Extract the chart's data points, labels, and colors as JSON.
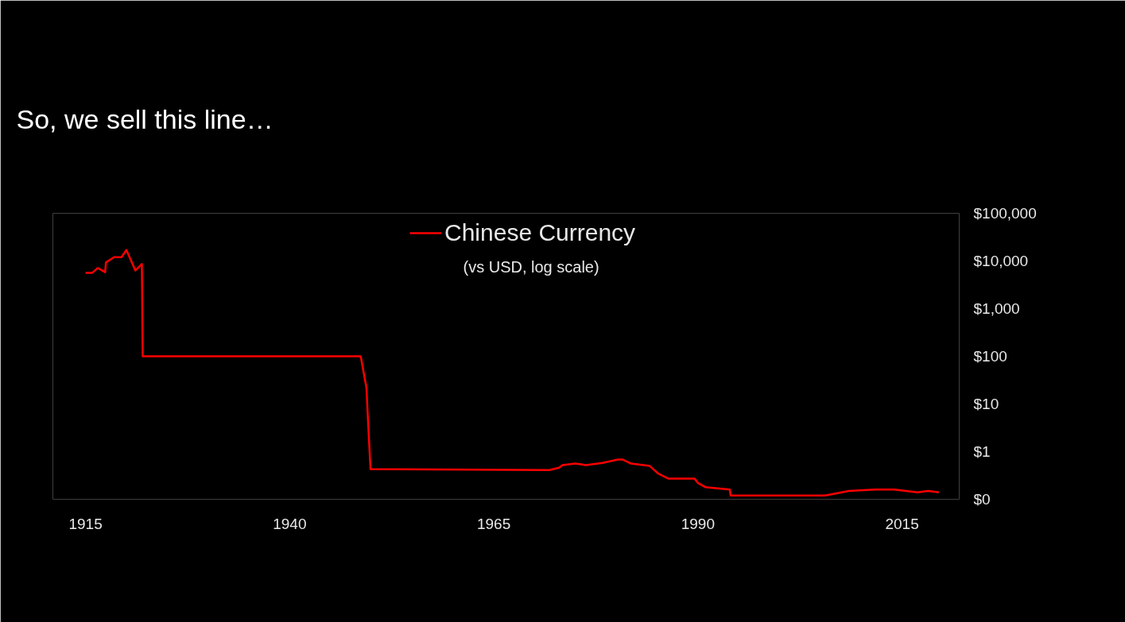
{
  "chart_data": {
    "type": "line",
    "title": "So, we sell this line…",
    "subtitle": "(vs USD,  log scale)",
    "series": [
      {
        "name": "Chinese Currency",
        "color": "#ff0000",
        "x": [
          1915.0,
          1915.8,
          1916.5,
          1917.4,
          1917.5,
          1918.5,
          1919.4,
          1920.0,
          1920.6,
          1921.1,
          1921.9,
          1922.0,
          1948.7,
          1949.4,
          1949.6,
          1949.9,
          1971.8,
          1973.0,
          1973.4,
          1975.0,
          1976.3,
          1978.3,
          1980.2,
          1980.8,
          1981.8,
          1984.1,
          1985.1,
          1986.4,
          1989.6,
          1990.0,
          1990.9,
          1993.9,
          1994.0,
          2005.6,
          2008.5,
          2011.7,
          2014.0,
          2016.9,
          2018.2,
          2019.5
        ],
        "values": [
          5600,
          5600,
          7100,
          5800,
          9300,
          12000,
          12000,
          17000,
          10000,
          6300,
          8600,
          100,
          100,
          22,
          4.3,
          0.43,
          0.41,
          0.46,
          0.52,
          0.56,
          0.52,
          0.58,
          0.68,
          0.68,
          0.56,
          0.5,
          0.35,
          0.27,
          0.27,
          0.22,
          0.18,
          0.16,
          0.12,
          0.12,
          0.15,
          0.16,
          0.16,
          0.14,
          0.15,
          0.14
        ]
      }
    ],
    "xlim": [
      1911,
      2022
    ],
    "xticks": [
      1915,
      1940,
      1965,
      1990,
      2015
    ],
    "ylim": [
      0.1,
      100000
    ],
    "yticks": [
      {
        "value": 0.1,
        "label": "$0"
      },
      {
        "value": 1,
        "label": "$1"
      },
      {
        "value": 10,
        "label": "$10"
      },
      {
        "value": 100,
        "label": "$100"
      },
      {
        "value": 1000,
        "label": "$1,000"
      },
      {
        "value": 10000,
        "label": "$10,000"
      },
      {
        "value": 100000,
        "label": "$100,000"
      }
    ],
    "log": "y",
    "legend": "top",
    "grid": false
  }
}
